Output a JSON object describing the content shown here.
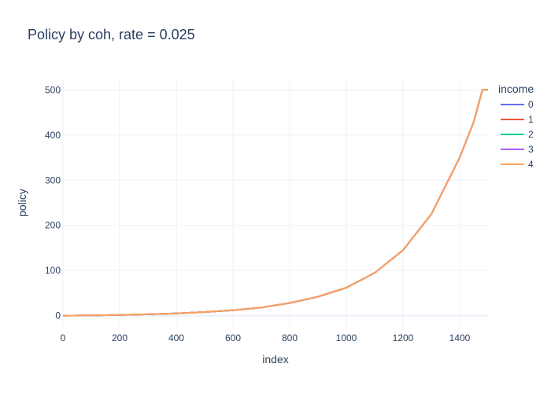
{
  "chart_data": {
    "type": "line",
    "title": "Policy by coh, rate = 0.025",
    "xlabel": "index",
    "ylabel": "policy",
    "xlim": [
      0,
      1500
    ],
    "ylim": [
      -25,
      525
    ],
    "x_ticks": [
      0,
      200,
      400,
      600,
      800,
      1000,
      1200,
      1400
    ],
    "y_ticks": [
      0,
      100,
      200,
      300,
      400,
      500
    ],
    "grid": true,
    "legend": {
      "title": "income",
      "position": "right"
    },
    "colors": [
      "#636efa",
      "#EF553B",
      "#00cc96",
      "#ab63fa",
      "#FFA15A"
    ],
    "x": [
      0,
      100,
      200,
      300,
      400,
      500,
      600,
      700,
      800,
      900,
      1000,
      1100,
      1200,
      1300,
      1400,
      1450,
      1480,
      1500
    ],
    "series": [
      {
        "name": "0",
        "values": [
          0,
          0.5,
          1.5,
          3,
          5,
          8,
          12,
          18,
          28,
          42,
          62,
          95,
          145,
          225,
          350,
          430,
          500,
          500
        ]
      },
      {
        "name": "1",
        "values": [
          0,
          0.5,
          1.5,
          3,
          5,
          8,
          12,
          18,
          28,
          42,
          62,
          95,
          145,
          225,
          350,
          430,
          500,
          500
        ]
      },
      {
        "name": "2",
        "values": [
          0,
          0.5,
          1.5,
          3,
          5,
          8,
          12,
          18,
          28,
          42,
          62,
          95,
          145,
          225,
          350,
          430,
          500,
          500
        ]
      },
      {
        "name": "3",
        "values": [
          0,
          0.5,
          1.5,
          3,
          5,
          8,
          12,
          18,
          28,
          42,
          62,
          95,
          145,
          225,
          350,
          430,
          500,
          500
        ]
      },
      {
        "name": "4",
        "values": [
          0,
          0.5,
          1.5,
          3,
          5,
          8,
          12,
          18,
          28,
          42,
          62,
          95,
          145,
          225,
          350,
          430,
          500,
          500
        ]
      }
    ]
  }
}
